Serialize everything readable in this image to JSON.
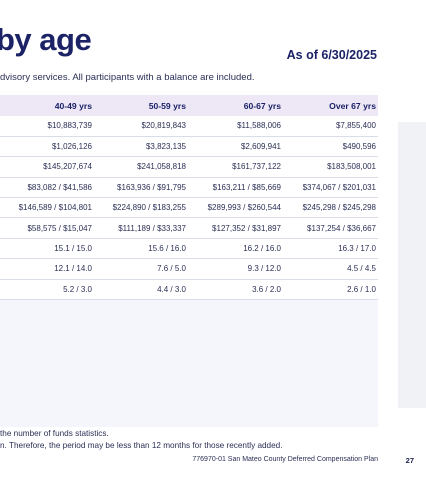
{
  "header": {
    "title": "by age",
    "as_of": "As of 6/30/2025",
    "subtitle": "dvisory services. All participants with a balance are included."
  },
  "table": {
    "columns": [
      "40-49 yrs",
      "50-59 yrs",
      "60-67 yrs",
      "Over 67 yrs"
    ],
    "rows": [
      [
        "$10,883,739",
        "$20,819,843",
        "$11,588,006",
        "$7,855,400"
      ],
      [
        "$1,026,126",
        "$3,823,135",
        "$2,609,941",
        "$490,596"
      ],
      [
        "$145,207,674",
        "$241,058,818",
        "$161,737,122",
        "$183,508,001"
      ],
      [
        "$83,082 / $41,586",
        "$163,936 / $91,795",
        "$163,211 / $85,669",
        "$374,067 / $201,031"
      ],
      [
        "$146,589 / $104,801",
        "$224,890 / $183,255",
        "$289,993 / $260,544",
        "$245,298 / $245,298"
      ],
      [
        "$58,575 / $15,047",
        "$111,189 / $33,337",
        "$127,352 / $31,897",
        "$137,254 / $36,667"
      ],
      [
        "15.1 / 15.0",
        "15.6 / 16.0",
        "16.2 / 16.0",
        "16.3 / 17.0"
      ],
      [
        "12.1 / 14.0",
        "7.6 / 5.0",
        "9.3 / 12.0",
        "4.5 / 4.5"
      ],
      [
        "5.2 / 3.0",
        "4.4 / 3.0",
        "3.6 / 2.0",
        "2.6 / 1.0"
      ]
    ]
  },
  "footnotes": [
    "the number of funds statistics.",
    "n. Therefore, the period may be less than 12 months for those recently added."
  ],
  "footer": {
    "text": "776970-01 San Mateo County Deferred Compensation Plan",
    "page": "27"
  }
}
